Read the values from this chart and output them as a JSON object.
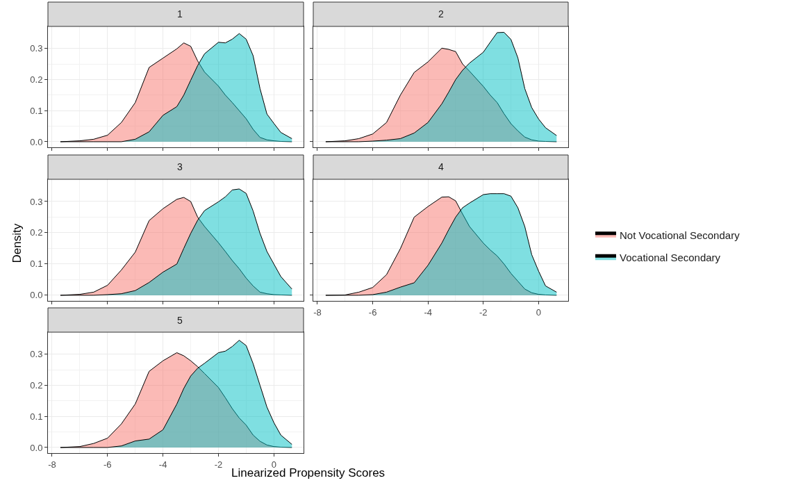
{
  "chart_data": [
    {
      "type": "area",
      "title": "1",
      "x": [
        -7.7,
        -7,
        -6.5,
        -6,
        -5.5,
        -5,
        -4.5,
        -4,
        -3.5,
        -3.25,
        -3,
        -2.75,
        -2.5,
        -2,
        -1.75,
        -1.5,
        -1.25,
        -1,
        -0.75,
        -0.5,
        -0.25,
        0,
        0.25,
        0.65
      ],
      "xlim": [
        -8.15,
        1.07
      ],
      "ylim": [
        -0.018,
        0.371
      ],
      "xticks": [
        -8,
        -6,
        -4,
        -2,
        0
      ],
      "yticks": [
        {
          "value": 0,
          "label": "0.0"
        },
        {
          "value": 0.1,
          "label": "0.1"
        },
        {
          "value": 0.2,
          "label": "0.2"
        },
        {
          "value": 0.3,
          "label": "0.3"
        }
      ],
      "grid": true,
      "legend": "right",
      "tick_labels": "y",
      "series": [
        {
          "name": "Not Vocational Secondary",
          "color": "#f8766d",
          "values": [
            0,
            0.003,
            0.008,
            0.021,
            0.062,
            0.126,
            0.239,
            0.269,
            0.299,
            0.318,
            0.307,
            0.26,
            0.224,
            0.179,
            0.15,
            0.126,
            0.1,
            0.074,
            0.04,
            0.014,
            0.006,
            0.003,
            0.001,
            0
          ]
        },
        {
          "name": "Vocational Secondary",
          "color": "#00bfc4",
          "values": [
            0,
            0,
            0,
            0,
            0,
            0.008,
            0.032,
            0.085,
            0.113,
            0.15,
            0.198,
            0.245,
            0.283,
            0.32,
            0.318,
            0.33,
            0.348,
            0.33,
            0.277,
            0.171,
            0.089,
            0.059,
            0.03,
            0.01
          ]
        }
      ]
    },
    {
      "type": "area",
      "title": "2",
      "x": [
        -7.7,
        -7,
        -6.5,
        -6,
        -5.5,
        -5,
        -4.5,
        -4,
        -3.5,
        -3.25,
        -3,
        -2.75,
        -2.5,
        -2,
        -1.75,
        -1.5,
        -1.25,
        -1,
        -0.75,
        -0.5,
        -0.25,
        0,
        0.25,
        0.65
      ],
      "xlim": [
        -8.15,
        1.07
      ],
      "ylim": [
        -0.018,
        0.371
      ],
      "xticks": [
        -8,
        -6,
        -4,
        -2,
        0
      ],
      "yticks": [
        {
          "value": 0,
          "label": "0.0"
        },
        {
          "value": 0.1,
          "label": "0.1"
        },
        {
          "value": 0.2,
          "label": "0.2"
        },
        {
          "value": 0.3,
          "label": "0.3"
        }
      ],
      "grid": true,
      "tick_labels": false,
      "series": [
        {
          "name": "Not Vocational Secondary",
          "color": "#f8766d",
          "values": [
            0,
            0.003,
            0.01,
            0.025,
            0.062,
            0.15,
            0.223,
            0.257,
            0.301,
            0.297,
            0.29,
            0.25,
            0.227,
            0.178,
            0.15,
            0.126,
            0.09,
            0.058,
            0.035,
            0.015,
            0.006,
            0.002,
            0.001,
            0
          ]
        },
        {
          "name": "Vocational Secondary",
          "color": "#00bfc4",
          "values": [
            0,
            0,
            0,
            0.002,
            0.005,
            0.01,
            0.028,
            0.062,
            0.122,
            0.16,
            0.2,
            0.23,
            0.253,
            0.288,
            0.32,
            0.351,
            0.352,
            0.329,
            0.27,
            0.171,
            0.11,
            0.073,
            0.045,
            0.02
          ]
        }
      ]
    },
    {
      "type": "area",
      "title": "3",
      "ylabel": "Density",
      "x": [
        -7.7,
        -7,
        -6.5,
        -6,
        -5.5,
        -5,
        -4.5,
        -4,
        -3.5,
        -3.25,
        -3,
        -2.75,
        -2.5,
        -2,
        -1.75,
        -1.5,
        -1.25,
        -1,
        -0.75,
        -0.5,
        -0.25,
        0,
        0.25,
        0.65
      ],
      "xlim": [
        -8.15,
        1.07
      ],
      "ylim": [
        -0.018,
        0.371
      ],
      "xticks": [
        -8,
        -6,
        -4,
        -2,
        0
      ],
      "yticks": [
        {
          "value": 0,
          "label": "0.0"
        },
        {
          "value": 0.1,
          "label": "0.1"
        },
        {
          "value": 0.2,
          "label": "0.2"
        },
        {
          "value": 0.3,
          "label": "0.3"
        }
      ],
      "grid": true,
      "tick_labels": "y",
      "series": [
        {
          "name": "Not Vocational Secondary",
          "color": "#f8766d",
          "values": [
            0,
            0.003,
            0.01,
            0.032,
            0.081,
            0.138,
            0.239,
            0.277,
            0.307,
            0.313,
            0.3,
            0.25,
            0.22,
            0.168,
            0.14,
            0.111,
            0.085,
            0.055,
            0.03,
            0.01,
            0.005,
            0.002,
            0.001,
            0
          ]
        },
        {
          "name": "Vocational Secondary",
          "color": "#00bfc4",
          "values": [
            0,
            0,
            0,
            0.002,
            0.005,
            0.015,
            0.041,
            0.074,
            0.1,
            0.15,
            0.198,
            0.24,
            0.271,
            0.299,
            0.315,
            0.337,
            0.34,
            0.326,
            0.27,
            0.198,
            0.14,
            0.1,
            0.06,
            0.02
          ]
        }
      ]
    },
    {
      "type": "area",
      "title": "4",
      "x": [
        -7.7,
        -7,
        -6.5,
        -6,
        -5.5,
        -5,
        -4.5,
        -4,
        -3.5,
        -3.25,
        -3,
        -2.75,
        -2.5,
        -2,
        -1.75,
        -1.5,
        -1.25,
        -1,
        -0.75,
        -0.5,
        -0.25,
        0,
        0.25,
        0.65
      ],
      "xlim": [
        -8.15,
        1.07
      ],
      "ylim": [
        -0.018,
        0.371
      ],
      "xticks": [
        -8,
        -6,
        -4,
        -2,
        0
      ],
      "yticks": [
        {
          "value": 0,
          "label": "0.0"
        },
        {
          "value": 0.1,
          "label": "0.1"
        },
        {
          "value": 0.2,
          "label": "0.2"
        },
        {
          "value": 0.3,
          "label": "0.3"
        }
      ],
      "grid": true,
      "tick_labels": "x",
      "series": [
        {
          "name": "Not Vocational Secondary",
          "color": "#f8766d",
          "values": [
            0,
            0.001,
            0.01,
            0.025,
            0.066,
            0.149,
            0.25,
            0.284,
            0.314,
            0.315,
            0.302,
            0.26,
            0.22,
            0.167,
            0.145,
            0.126,
            0.1,
            0.07,
            0.045,
            0.02,
            0.008,
            0.003,
            0.001,
            0
          ]
        },
        {
          "name": "Vocational Secondary",
          "color": "#00bfc4",
          "values": [
            0,
            0,
            0,
            0.002,
            0.01,
            0.026,
            0.04,
            0.096,
            0.167,
            0.21,
            0.25,
            0.28,
            0.295,
            0.322,
            0.325,
            0.325,
            0.325,
            0.317,
            0.28,
            0.22,
            0.13,
            0.077,
            0.03,
            0.01
          ]
        }
      ]
    },
    {
      "type": "area",
      "title": "5",
      "xlabel": "Linearized Propensity Scores",
      "x": [
        -7.7,
        -7,
        -6.5,
        -6,
        -5.5,
        -5,
        -4.5,
        -4,
        -3.5,
        -3.25,
        -3,
        -2.75,
        -2.5,
        -2,
        -1.75,
        -1.5,
        -1.25,
        -1,
        -0.75,
        -0.5,
        -0.25,
        0,
        0.25,
        0.65
      ],
      "xlim": [
        -8.15,
        1.07
      ],
      "ylim": [
        -0.018,
        0.371
      ],
      "xticks": [
        -8,
        -6,
        -4,
        -2,
        0
      ],
      "yticks": [
        {
          "value": 0,
          "label": "0.0"
        },
        {
          "value": 0.1,
          "label": "0.1"
        },
        {
          "value": 0.2,
          "label": "0.2"
        },
        {
          "value": 0.3,
          "label": "0.3"
        }
      ],
      "grid": true,
      "series": [
        {
          "name": "Not Vocational Secondary",
          "color": "#f8766d",
          "values": [
            0,
            0.003,
            0.013,
            0.03,
            0.076,
            0.14,
            0.245,
            0.279,
            0.305,
            0.295,
            0.279,
            0.26,
            0.238,
            0.193,
            0.16,
            0.125,
            0.095,
            0.072,
            0.04,
            0.02,
            0.008,
            0.003,
            0.001,
            0
          ]
        },
        {
          "name": "Vocational Secondary",
          "color": "#00bfc4",
          "values": [
            0,
            0,
            0,
            0,
            0.005,
            0.021,
            0.027,
            0.057,
            0.14,
            0.19,
            0.23,
            0.255,
            0.271,
            0.305,
            0.31,
            0.325,
            0.345,
            0.328,
            0.27,
            0.2,
            0.13,
            0.08,
            0.04,
            0.01
          ]
        }
      ]
    }
  ]
}
